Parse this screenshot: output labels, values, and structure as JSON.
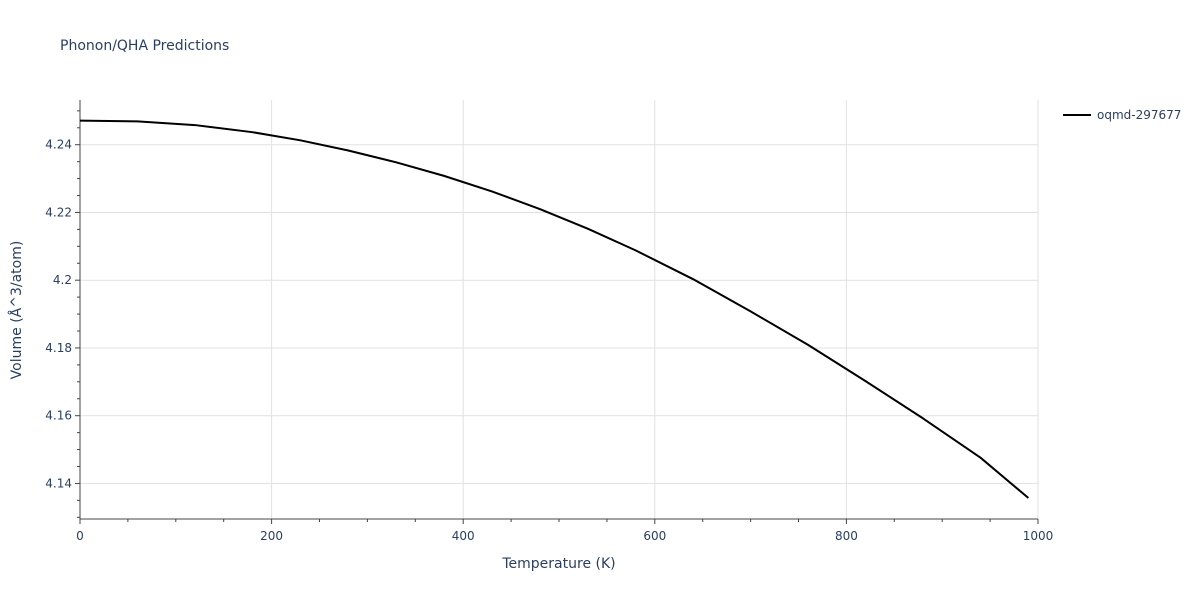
{
  "chart_data": {
    "type": "line",
    "title": "Phonon/QHA Predictions",
    "xlabel": "Temperature (K)",
    "ylabel": "Volume (Å^3/atom)",
    "xlim": [
      0,
      1000
    ],
    "ylim": [
      4.1295,
      4.2532
    ],
    "x_ticks": [
      0,
      200,
      400,
      600,
      800,
      1000
    ],
    "x_tick_labels": [
      "0",
      "200",
      "400",
      "600",
      "800",
      "1000"
    ],
    "y_ticks": [
      4.14,
      4.16,
      4.18,
      4.2,
      4.22,
      4.24
    ],
    "y_tick_labels": [
      "4.14",
      "4.16",
      "4.18",
      "4.2",
      "4.22",
      "4.24"
    ],
    "grid": true,
    "legend_position": "top-right",
    "series": [
      {
        "name": "oqmd-297677",
        "color": "#000000",
        "x": [
          0,
          60,
          120,
          180,
          230,
          280,
          330,
          380,
          430,
          480,
          530,
          580,
          640,
          700,
          760,
          820,
          880,
          940,
          990
        ],
        "y": [
          4.2471,
          4.2469,
          4.2458,
          4.2437,
          4.2413,
          4.2383,
          4.2348,
          4.2308,
          4.2262,
          4.221,
          4.2152,
          4.2088,
          4.2003,
          4.1908,
          4.1809,
          4.1702,
          4.1592,
          4.1476,
          4.1357
        ]
      }
    ]
  }
}
